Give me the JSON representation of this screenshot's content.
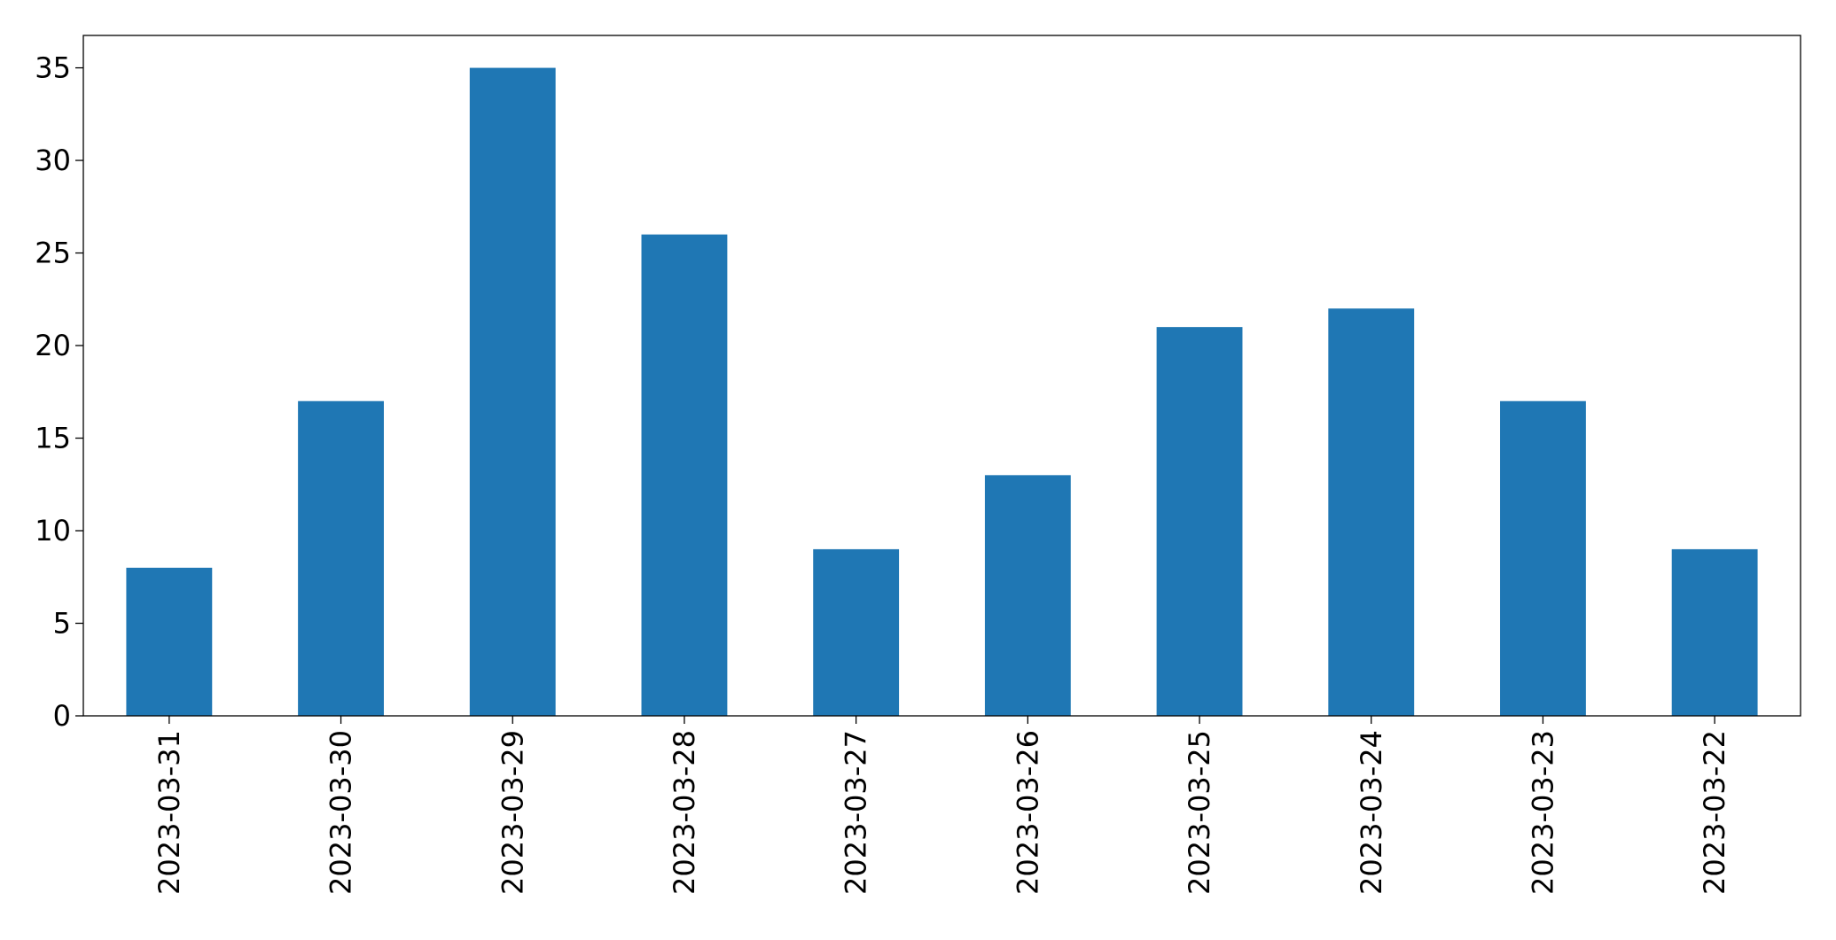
{
  "chart_data": {
    "type": "bar",
    "categories": [
      "2023-03-31",
      "2023-03-30",
      "2023-03-29",
      "2023-03-28",
      "2023-03-27",
      "2023-03-26",
      "2023-03-25",
      "2023-03-24",
      "2023-03-23",
      "2023-03-22"
    ],
    "values": [
      8,
      17,
      35,
      26,
      9,
      13,
      21,
      22,
      17,
      9
    ],
    "color": "#1f77b4",
    "ylim": [
      0,
      36.75
    ],
    "yticks": [
      0,
      5,
      10,
      15,
      20,
      25,
      30,
      35
    ],
    "grid": false
  }
}
